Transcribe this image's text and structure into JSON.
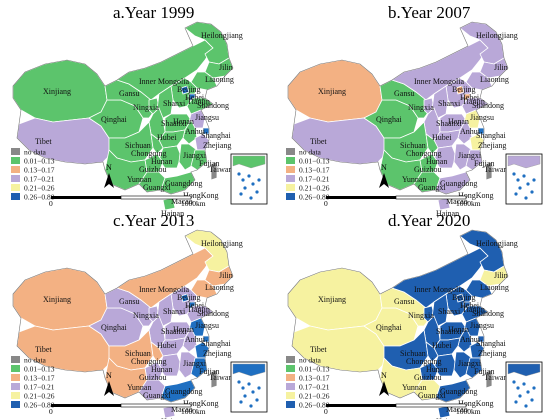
{
  "figure": {
    "panels": [
      {
        "title": "a.Year 1999",
        "labels": {
          "xinjiang": "Xinjiang",
          "tibet": "Tibet",
          "qinghai": "Qinghai",
          "inner_mongolia": "Inner Mongolia",
          "heilongjiang": "Heilongjiang",
          "jilin": "Jilin",
          "liaoning": "Liaoning",
          "hebei": "Hebei",
          "beijing": "Beijing",
          "tianjin": "Tianjin",
          "ningxia": "Ningxia",
          "shanxi": "Shanxi",
          "shandong": "Shandong",
          "gansu": "Gansu",
          "shaanxi": "Shaanxi",
          "henan": "Henan",
          "jiangsu": "Jiangsu",
          "anhui": "Anhui",
          "shanghai": "Shanghai",
          "hubei": "Hubei",
          "sichuan": "Sichuan",
          "chongqing": "Chongqing",
          "zhejiang": "Zhejiang",
          "hunan": "Hunan",
          "jiangxi": "Jiangxi",
          "guizhou": "Guizhou",
          "fujian": "Fujian",
          "yunnan": "Yunnan",
          "guangxi": "Guangxi",
          "guangdong": "Guangdong",
          "taiwan": "Taiwan",
          "hongkong": "HongKong",
          "macao": "Macao",
          "hainan": "Hainan"
        },
        "colors": {
          "xinjiang": "#5cc46c",
          "tibet": "#b9a8d8",
          "qinghai": "#5cc46c",
          "inner_mongolia": "#5cc46c",
          "heilongjiang": "#5cc46c",
          "jilin": "#5cc46c",
          "liaoning": "#5cc46c",
          "hebei": "#5cc46c",
          "ningxia": "#5cc46c",
          "shanxi": "#5cc46c",
          "shandong": "#5cc46c",
          "gansu": "#5cc46c",
          "shaanxi": "#5cc46c",
          "henan": "#5cc46c",
          "jiangsu": "#b9a8d8",
          "anhui": "#5cc46c",
          "hubei": "#5cc46c",
          "sichuan": "#5cc46c",
          "chongqing": "#5cc46c",
          "zhejiang": "#b9a8d8",
          "hunan": "#5cc46c",
          "jiangxi": "#5cc46c",
          "guizhou": "#5cc46c",
          "fujian": "#5cc46c",
          "yunnan": "#5cc46c",
          "guangxi": "#5cc46c",
          "guangdong": "#5cc46c",
          "hainan": "#5cc46c",
          "taiwan": "#888888",
          "beijing": "#1f6fc1",
          "tianjin": "#1f6fc1",
          "shanghai": "#1f6fc1"
        }
      },
      {
        "title": "b.Year 2007",
        "labels": {
          "xinjiang": "Xinjiang",
          "tibet": "Tibet",
          "qinghai": "Qinghai",
          "inner_mongolia": "Inner Mongolia",
          "heilongjiang": "Heilongjiang",
          "jilin": "Jilin",
          "liaoning": "Liaoning",
          "hebei": "Hebei",
          "beijing": "Beijing",
          "tianjin": "Tianjin",
          "ningxia": "Ningxia",
          "shanxi": "Shanxi",
          "shandong": "Shandong",
          "gansu": "Gansu",
          "shaanxi": "Shaanxi",
          "henan": "Henan",
          "jiangsu": "Jiangsu",
          "anhui": "Anhui",
          "shanghai": "Shanghai",
          "hubei": "Hubei",
          "sichuan": "Sichuan",
          "chongqing": "Chongqing",
          "zhejiang": "Zhejiang",
          "hunan": "Hunan",
          "jiangxi": "Jiangxi",
          "guizhou": "Guizhou",
          "fujian": "Fujian",
          "yunnan": "Yunnan",
          "guangxi": "Guangxi",
          "guangdong": "Guangdong",
          "taiwan": "Taiwan",
          "hongkong": "HongKong",
          "macao": "Macao",
          "hainan": "Hainan"
        },
        "colors": {
          "xinjiang": "#f3b183",
          "tibet": "#b9a8d8",
          "qinghai": "#5cc46c",
          "inner_mongolia": "#b9a8d8",
          "heilongjiang": "#b9a8d8",
          "jilin": "#b9a8d8",
          "liaoning": "#b9a8d8",
          "hebei": "#b9a8d8",
          "ningxia": "#b9a8d8",
          "shanxi": "#b9a8d8",
          "shandong": "#b9a8d8",
          "gansu": "#5cc46c",
          "shaanxi": "#b9a8d8",
          "henan": "#b9a8d8",
          "jiangsu": "#f6f2a0",
          "anhui": "#b9a8d8",
          "hubei": "#b9a8d8",
          "sichuan": "#5cc46c",
          "chongqing": "#5cc46c",
          "zhejiang": "#f6f2a0",
          "hunan": "#b9a8d8",
          "jiangxi": "#b9a8d8",
          "guizhou": "#5cc46c",
          "fujian": "#b9a8d8",
          "yunnan": "#5cc46c",
          "guangxi": "#5cc46c",
          "guangdong": "#b9a8d8",
          "hainan": "#b9a8d8",
          "taiwan": "#888888",
          "beijing": "#f3b183",
          "tianjin": "#f3b183",
          "shanghai": "#1f6fc1"
        }
      },
      {
        "title": "c.Year 2013",
        "labels": {
          "xinjiang": "Xinjiang",
          "tibet": "Tibet",
          "qinghai": "Qinghai",
          "inner_mongolia": "Inner Mongolia",
          "heilongjiang": "Heilongjiang",
          "jilin": "Jilin",
          "liaoning": "Liaoning",
          "hebei": "Hebei",
          "beijing": "Beijing",
          "tianjin": "Tianjin",
          "ningxia": "Ningxia",
          "shanxi": "Shanxi",
          "shandong": "Shandong",
          "gansu": "Gansu",
          "shaanxi": "Shaanxi",
          "henan": "Henan",
          "jiangsu": "Jiangsu",
          "anhui": "Anhui",
          "shanghai": "Shanghai",
          "hubei": "Hubei",
          "sichuan": "Sichuan",
          "chongqing": "Chongqing",
          "zhejiang": "Zhejiang",
          "hunan": "Hunan",
          "jiangxi": "Jiangxi",
          "guizhou": "Guizhou",
          "fujian": "Fujian",
          "yunnan": "Yunnan",
          "guangxi": "Guangxi",
          "guangdong": "Guangdong",
          "taiwan": "Taiwan",
          "hongkong": "HongKong",
          "macao": "Macao",
          "hainan": "Hainan"
        },
        "colors": {
          "xinjiang": "#f3b183",
          "tibet": "#f3b183",
          "qinghai": "#b9a8d8",
          "inner_mongolia": "#f3b183",
          "heilongjiang": "#f6f2a0",
          "jilin": "#f3b183",
          "liaoning": "#f3b183",
          "hebei": "#b9a8d8",
          "ningxia": "#b9a8d8",
          "shanxi": "#b9a8d8",
          "shandong": "#b9a8d8",
          "gansu": "#b9a8d8",
          "shaanxi": "#b9a8d8",
          "henan": "#b9a8d8",
          "jiangsu": "#1f6fc1",
          "anhui": "#b9a8d8",
          "hubei": "#b9a8d8",
          "sichuan": "#f3b183",
          "chongqing": "#f3b183",
          "zhejiang": "#1f6fc1",
          "hunan": "#b9a8d8",
          "jiangxi": "#b9a8d8",
          "guizhou": "#b9a8d8",
          "fujian": "#1f6fc1",
          "yunnan": "#f3b183",
          "guangxi": "#b9a8d8",
          "guangdong": "#1f6fc1",
          "hainan": "#b9a8d8",
          "taiwan": "#888888",
          "beijing": "#1f6fc1",
          "tianjin": "#1f6fc1",
          "shanghai": "#1f6fc1"
        }
      },
      {
        "title": "d.Year 2020",
        "labels": {
          "xinjiang": "Xinjiang",
          "tibet": "Tibet",
          "qinghai": "Qinghai",
          "inner_mongolia": "Inner Mongolia",
          "heilongjiang": "Heilongjiang",
          "jilin": "Jilin",
          "liaoning": "Liaoning",
          "hebei": "Hebei",
          "beijing": "Beijing",
          "tianjin": "Tianjin",
          "ningxia": "Ningxia",
          "shanxi": "Shanxi",
          "shandong": "Shandong",
          "gansu": "Gansu",
          "shaanxi": "Shaanxi",
          "henan": "Henan",
          "jiangsu": "Jiangsu",
          "anhui": "Anhui",
          "shanghai": "Shanghai",
          "hubei": "Hubei",
          "sichuan": "Sichuan",
          "chongqing": "Chongqing",
          "zhejiang": "Zhejiang",
          "hunan": "Hunan",
          "jiangxi": "Jiangxi",
          "guizhou": "Guizhou",
          "fujian": "Fujian",
          "yunnan": "Yunnan",
          "guangxi": "Guangxi",
          "guangdong": "Guangdong",
          "taiwan": "Taiwan",
          "hongkong": "HongKong",
          "macao": "Macao",
          "hainan": "Hainan"
        },
        "colors": {
          "xinjiang": "#f6f2a0",
          "tibet": "#f6f2a0",
          "qinghai": "#f6f2a0",
          "inner_mongolia": "#1f5fb0",
          "heilongjiang": "#1f5fb0",
          "jilin": "#f6f2a0",
          "liaoning": "#1f5fb0",
          "hebei": "#1f5fb0",
          "ningxia": "#1f5fb0",
          "shanxi": "#1f5fb0",
          "shandong": "#1f5fb0",
          "gansu": "#f6f2a0",
          "shaanxi": "#1f5fb0",
          "henan": "#1f5fb0",
          "jiangsu": "#1f5fb0",
          "anhui": "#1f5fb0",
          "hubei": "#1f5fb0",
          "sichuan": "#1f5fb0",
          "chongqing": "#1f5fb0",
          "zhejiang": "#1f5fb0",
          "hunan": "#1f5fb0",
          "jiangxi": "#1f5fb0",
          "guizhou": "#1f5fb0",
          "fujian": "#1f5fb0",
          "yunnan": "#f6f2a0",
          "guangxi": "#f6f2a0",
          "guangdong": "#1f5fb0",
          "hainan": "#1f5fb0",
          "taiwan": "#888888",
          "beijing": "#1f5fb0",
          "tianjin": "#1f5fb0",
          "shanghai": "#1f5fb0"
        }
      }
    ],
    "legend": {
      "items": [
        {
          "label": "no data",
          "color": "#888888"
        },
        {
          "label": "0.01−0.13",
          "color": "#5cc46c"
        },
        {
          "label": "0.13−0.17",
          "color": "#f3b183"
        },
        {
          "label": "0.17−0.21",
          "color": "#b9a8d8"
        },
        {
          "label": "0.21−0.26",
          "color": "#f6f2a0"
        },
        {
          "label": "0.26−0.80",
          "color": "#1f5fb0"
        }
      ]
    },
    "north_label": "N",
    "scale": {
      "zero": "0",
      "end": "1000km"
    }
  }
}
